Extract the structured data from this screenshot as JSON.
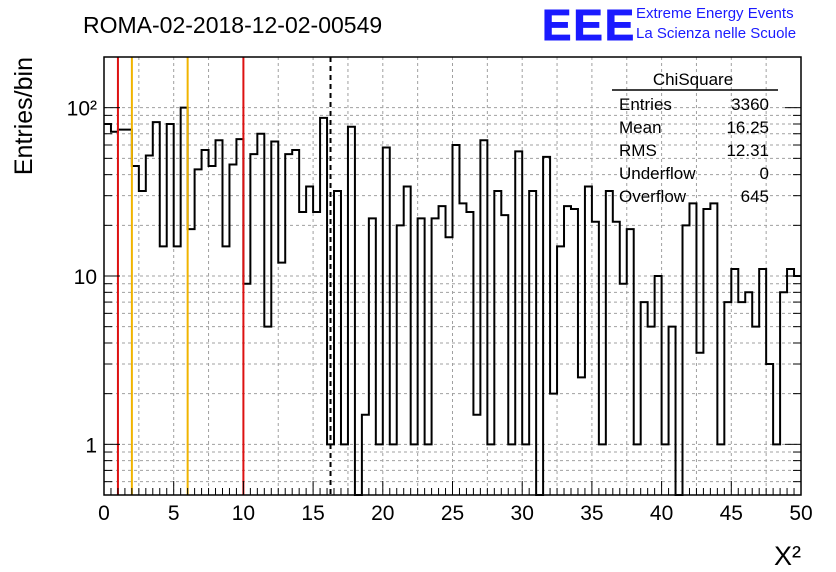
{
  "chart_data": {
    "type": "bar",
    "style": "step-histogram",
    "title": "ROMA-02-2018-12-02-00549",
    "xlabel": "X²",
    "ylabel": "Entries/bin",
    "xlim": [
      0,
      50
    ],
    "ylim": [
      0.5,
      200
    ],
    "yscale": "log",
    "grid": true,
    "x_ticks": [
      "0",
      "5",
      "10",
      "15",
      "20",
      "25",
      "30",
      "35",
      "40",
      "45",
      "50"
    ],
    "y_ticks": [
      {
        "value": 1,
        "label": "1"
      },
      {
        "value": 10,
        "label": "10"
      },
      {
        "value": 100,
        "label": "10²"
      }
    ],
    "bin_width": 0.5,
    "x": [
      0.25,
      0.75,
      1.25,
      1.75,
      2.25,
      2.75,
      3.25,
      3.75,
      4.25,
      4.75,
      5.25,
      5.75,
      6.25,
      6.75,
      7.25,
      7.75,
      8.25,
      8.75,
      9.25,
      9.75,
      10.25,
      10.75,
      11.25,
      11.75,
      12.25,
      12.75,
      13.25,
      13.75,
      14.25,
      14.75,
      15.25,
      15.75,
      16.25,
      16.75,
      17.25,
      17.75,
      18.25,
      18.75,
      19.25,
      19.75,
      20.25,
      20.75,
      21.25,
      21.75,
      22.25,
      22.75,
      23.25,
      23.75,
      24.25,
      24.75,
      25.25,
      25.75,
      26.25,
      26.75,
      27.25,
      27.75,
      28.25,
      28.75,
      29.25,
      29.75,
      30.25,
      30.75,
      31.25,
      31.75,
      32.25,
      32.75,
      33.25,
      33.75,
      34.25,
      34.75,
      35.25,
      35.75,
      36.25,
      36.75,
      37.25,
      37.75,
      38.25,
      38.75,
      39.25,
      39.75,
      40.25,
      40.75,
      41.25,
      41.75,
      42.25,
      42.75,
      43.25,
      43.75,
      44.25,
      44.75,
      45.25,
      45.75,
      46.25,
      46.75,
      47.25,
      47.75,
      48.25,
      48.75,
      49.25,
      49.75
    ],
    "values": [
      80,
      72,
      74,
      74,
      45,
      32,
      52,
      82,
      15,
      80,
      15,
      100,
      19,
      43,
      56,
      45,
      64,
      15,
      46,
      65,
      9,
      53,
      70,
      5,
      63,
      12,
      53,
      56,
      24,
      34,
      24,
      87,
      1,
      32,
      1,
      77,
      0.4,
      1.5,
      22,
      1,
      58,
      1,
      20,
      34,
      1,
      22,
      1,
      22,
      26,
      17,
      60,
      27,
      24,
      1.5,
      64,
      1,
      32,
      23,
      1,
      55,
      1,
      32,
      0.4,
      51,
      2,
      15,
      26,
      25,
      2.5,
      34,
      21,
      1,
      32,
      21,
      9,
      19,
      1,
      7,
      5,
      10,
      1,
      5,
      0.4,
      20,
      27,
      3.5,
      25,
      27,
      1,
      7,
      11,
      7,
      8,
      5,
      11,
      3,
      1,
      8,
      11,
      10
    ],
    "stats": {
      "title": "ChiSquare",
      "rows": [
        {
          "label": "Entries",
          "value": "3360"
        },
        {
          "label": "Mean",
          "value": "16.25"
        },
        {
          "label": "RMS",
          "value": "12.31"
        },
        {
          "label": "Underflow",
          "value": "0"
        },
        {
          "label": "Overflow",
          "value": "645"
        }
      ]
    },
    "vertical_lines": [
      {
        "x": 1,
        "color": "#dd1111",
        "style": "solid"
      },
      {
        "x": 2,
        "color": "#f0b400",
        "style": "solid"
      },
      {
        "x": 6,
        "color": "#f0b400",
        "style": "solid"
      },
      {
        "x": 10,
        "color": "#dd1111",
        "style": "solid"
      },
      {
        "x": 16.25,
        "color": "#000000",
        "style": "dashed"
      }
    ]
  },
  "logo": {
    "text": "EEE",
    "line1": "Extreme Energy Events",
    "line2": "La Scienza nelle Scuole",
    "color": "#1a1aff"
  }
}
